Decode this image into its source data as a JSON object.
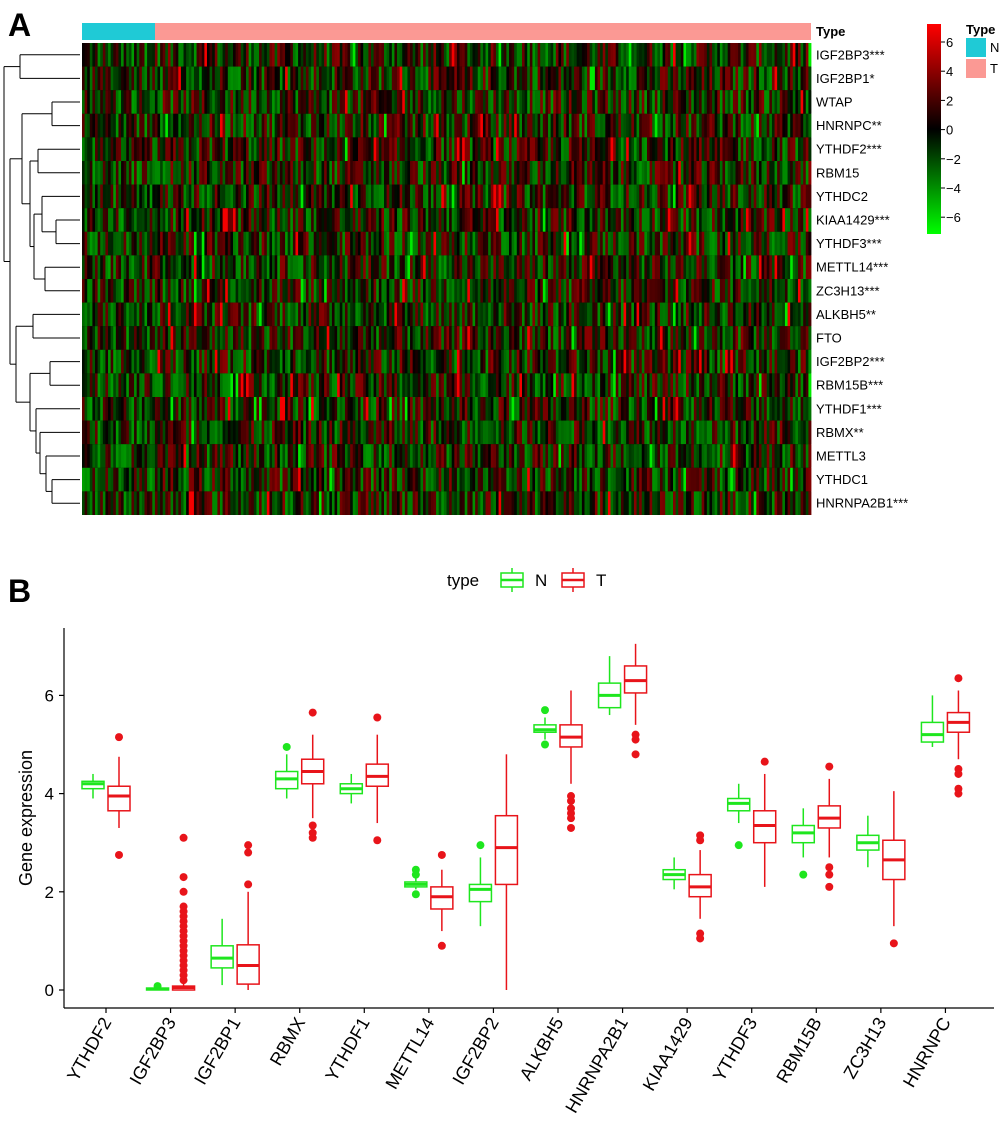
{
  "panel_a": {
    "label": "A",
    "annotation_title": "Type",
    "legend_title": "Type",
    "groups": [
      {
        "code": "N",
        "color": "#1fcad6"
      },
      {
        "code": "T",
        "color": "#fb9994"
      }
    ],
    "genes": [
      "IGF2BP3***",
      "IGF2BP1*",
      "WTAP",
      "HNRNPC**",
      "YTHDF2***",
      "RBM15",
      "YTHDC2",
      "KIAA1429***",
      "YTHDF3***",
      "METTL14***",
      "ZC3H13***",
      "ALKBH5**",
      "FTO",
      "IGF2BP2***",
      "RBM15B***",
      "YTHDF1***",
      "RBMX**",
      "METTL3",
      "YTHDC1",
      "HNRNPA2B1***"
    ],
    "color_scale": {
      "ticks": [
        "6",
        "4",
        "2",
        "0",
        "−2",
        "−4",
        "−6"
      ],
      "range": [
        -7,
        7
      ],
      "low_color": "#00ff00",
      "mid_color": "#000000",
      "high_color": "#ff0000"
    }
  },
  "chart_data": {
    "type": "boxplot",
    "panel_label": "B",
    "ylabel": "Gene expression",
    "xlabel": "",
    "ylim": [
      -0.4,
      7.5
    ],
    "yticks": [
      "0",
      "2",
      "4",
      "6"
    ],
    "legend": {
      "title": "type",
      "position": "top"
    },
    "series": [
      {
        "name": "N",
        "color": "#1ee61e"
      },
      {
        "name": "T",
        "color": "#e8141a"
      }
    ],
    "categories": [
      "YTHDF2",
      "IGF2BP3",
      "IGF2BP1",
      "RBMX",
      "YTHDF1",
      "METTL14",
      "IGF2BP2",
      "ALKBH5",
      "HNRNPA2B1",
      "KIAA1429",
      "YTHDF3",
      "RBM15B",
      "ZC3H13",
      "HNRNPC"
    ],
    "boxes": [
      {
        "category": "YTHDF2",
        "N": {
          "min": 3.9,
          "q1": 4.1,
          "median": 4.2,
          "q3": 4.25,
          "max": 4.4,
          "outliers": []
        },
        "T": {
          "min": 3.3,
          "q1": 3.65,
          "median": 3.95,
          "q3": 4.15,
          "max": 4.75,
          "outliers": [
            5.15,
            2.75
          ]
        }
      },
      {
        "category": "IGF2BP3",
        "N": {
          "min": 0,
          "q1": 0,
          "median": 0.02,
          "q3": 0.04,
          "max": 0.06,
          "outliers": [
            0.08
          ]
        },
        "T": {
          "min": 0,
          "q1": 0,
          "median": 0.05,
          "q3": 0.08,
          "max": 0.15,
          "outliers": [
            0.2,
            0.3,
            0.4,
            0.5,
            0.6,
            0.7,
            0.8,
            0.9,
            1.0,
            1.1,
            1.2,
            1.3,
            1.4,
            1.5,
            1.6,
            1.7,
            2.0,
            2.3,
            3.1
          ]
        }
      },
      {
        "category": "IGF2BP1",
        "N": {
          "min": 0.1,
          "q1": 0.45,
          "median": 0.65,
          "q3": 0.9,
          "max": 1.45,
          "outliers": []
        },
        "T": {
          "min": 0,
          "q1": 0.12,
          "median": 0.5,
          "q3": 0.92,
          "max": 2.0,
          "outliers": [
            2.15,
            2.8,
            2.95
          ]
        }
      },
      {
        "category": "RBMX",
        "N": {
          "min": 3.9,
          "q1": 4.1,
          "median": 4.3,
          "q3": 4.45,
          "max": 4.8,
          "outliers": [
            4.95
          ]
        },
        "T": {
          "min": 3.5,
          "q1": 4.2,
          "median": 4.45,
          "q3": 4.7,
          "max": 5.2,
          "outliers": [
            5.65,
            3.35,
            3.2,
            3.1
          ]
        }
      },
      {
        "category": "YTHDF1",
        "N": {
          "min": 3.8,
          "q1": 4.0,
          "median": 4.1,
          "q3": 4.2,
          "max": 4.4,
          "outliers": []
        },
        "T": {
          "min": 3.4,
          "q1": 4.15,
          "median": 4.35,
          "q3": 4.6,
          "max": 5.2,
          "outliers": [
            5.55,
            3.05
          ]
        }
      },
      {
        "category": "METTL14",
        "N": {
          "min": 2.05,
          "q1": 2.1,
          "median": 2.15,
          "q3": 2.2,
          "max": 2.3,
          "outliers": [
            2.45,
            2.35,
            1.95
          ]
        },
        "T": {
          "min": 1.2,
          "q1": 1.65,
          "median": 1.9,
          "q3": 2.1,
          "max": 2.45,
          "outliers": [
            2.75,
            0.9
          ]
        }
      },
      {
        "category": "IGF2BP2",
        "N": {
          "min": 1.3,
          "q1": 1.8,
          "median": 2.05,
          "q3": 2.15,
          "max": 2.7,
          "outliers": [
            2.95
          ]
        },
        "T": {
          "min": 0,
          "q1": 2.15,
          "median": 2.9,
          "q3": 3.55,
          "max": 4.8,
          "outliers": []
        }
      },
      {
        "category": "ALKBH5",
        "N": {
          "min": 5.1,
          "q1": 5.25,
          "median": 5.3,
          "q3": 5.4,
          "max": 5.55,
          "outliers": [
            5.7,
            5.0
          ]
        },
        "T": {
          "min": 4.2,
          "q1": 4.95,
          "median": 5.15,
          "q3": 5.4,
          "max": 6.1,
          "outliers": [
            3.95,
            3.85,
            3.7,
            3.6,
            3.5,
            3.3
          ]
        }
      },
      {
        "category": "HNRNPA2B1",
        "N": {
          "min": 5.6,
          "q1": 5.75,
          "median": 6.0,
          "q3": 6.25,
          "max": 6.8,
          "outliers": []
        },
        "T": {
          "min": 5.4,
          "q1": 6.05,
          "median": 6.3,
          "q3": 6.6,
          "max": 7.05,
          "outliers": [
            5.2,
            5.1,
            4.8
          ]
        }
      },
      {
        "category": "KIAA1429",
        "N": {
          "min": 2.05,
          "q1": 2.25,
          "median": 2.35,
          "q3": 2.45,
          "max": 2.7,
          "outliers": []
        },
        "T": {
          "min": 1.45,
          "q1": 1.9,
          "median": 2.1,
          "q3": 2.35,
          "max": 2.85,
          "outliers": [
            3.15,
            3.05,
            1.15,
            1.05
          ]
        }
      },
      {
        "category": "YTHDF3",
        "N": {
          "min": 3.4,
          "q1": 3.65,
          "median": 3.8,
          "q3": 3.9,
          "max": 4.2,
          "outliers": [
            2.95
          ]
        },
        "T": {
          "min": 2.1,
          "q1": 3.0,
          "median": 3.35,
          "q3": 3.65,
          "max": 4.4,
          "outliers": [
            4.65
          ]
        }
      },
      {
        "category": "RBM15B",
        "N": {
          "min": 2.7,
          "q1": 3.0,
          "median": 3.2,
          "q3": 3.35,
          "max": 3.7,
          "outliers": [
            2.35
          ]
        },
        "T": {
          "min": 2.7,
          "q1": 3.3,
          "median": 3.5,
          "q3": 3.75,
          "max": 4.3,
          "outliers": [
            4.55,
            2.5,
            2.35,
            2.1
          ]
        }
      },
      {
        "category": "ZC3H13",
        "N": {
          "min": 2.5,
          "q1": 2.85,
          "median": 3.0,
          "q3": 3.15,
          "max": 3.55,
          "outliers": []
        },
        "T": {
          "min": 1.3,
          "q1": 2.25,
          "median": 2.65,
          "q3": 3.05,
          "max": 4.05,
          "outliers": [
            0.95
          ]
        }
      },
      {
        "category": "HNRNPC",
        "N": {
          "min": 4.95,
          "q1": 5.05,
          "median": 5.2,
          "q3": 5.45,
          "max": 6.0,
          "outliers": []
        },
        "T": {
          "min": 4.7,
          "q1": 5.25,
          "median": 5.45,
          "q3": 5.65,
          "max": 6.1,
          "outliers": [
            6.35,
            4.5,
            4.4,
            4.1,
            4.0
          ]
        }
      }
    ]
  }
}
